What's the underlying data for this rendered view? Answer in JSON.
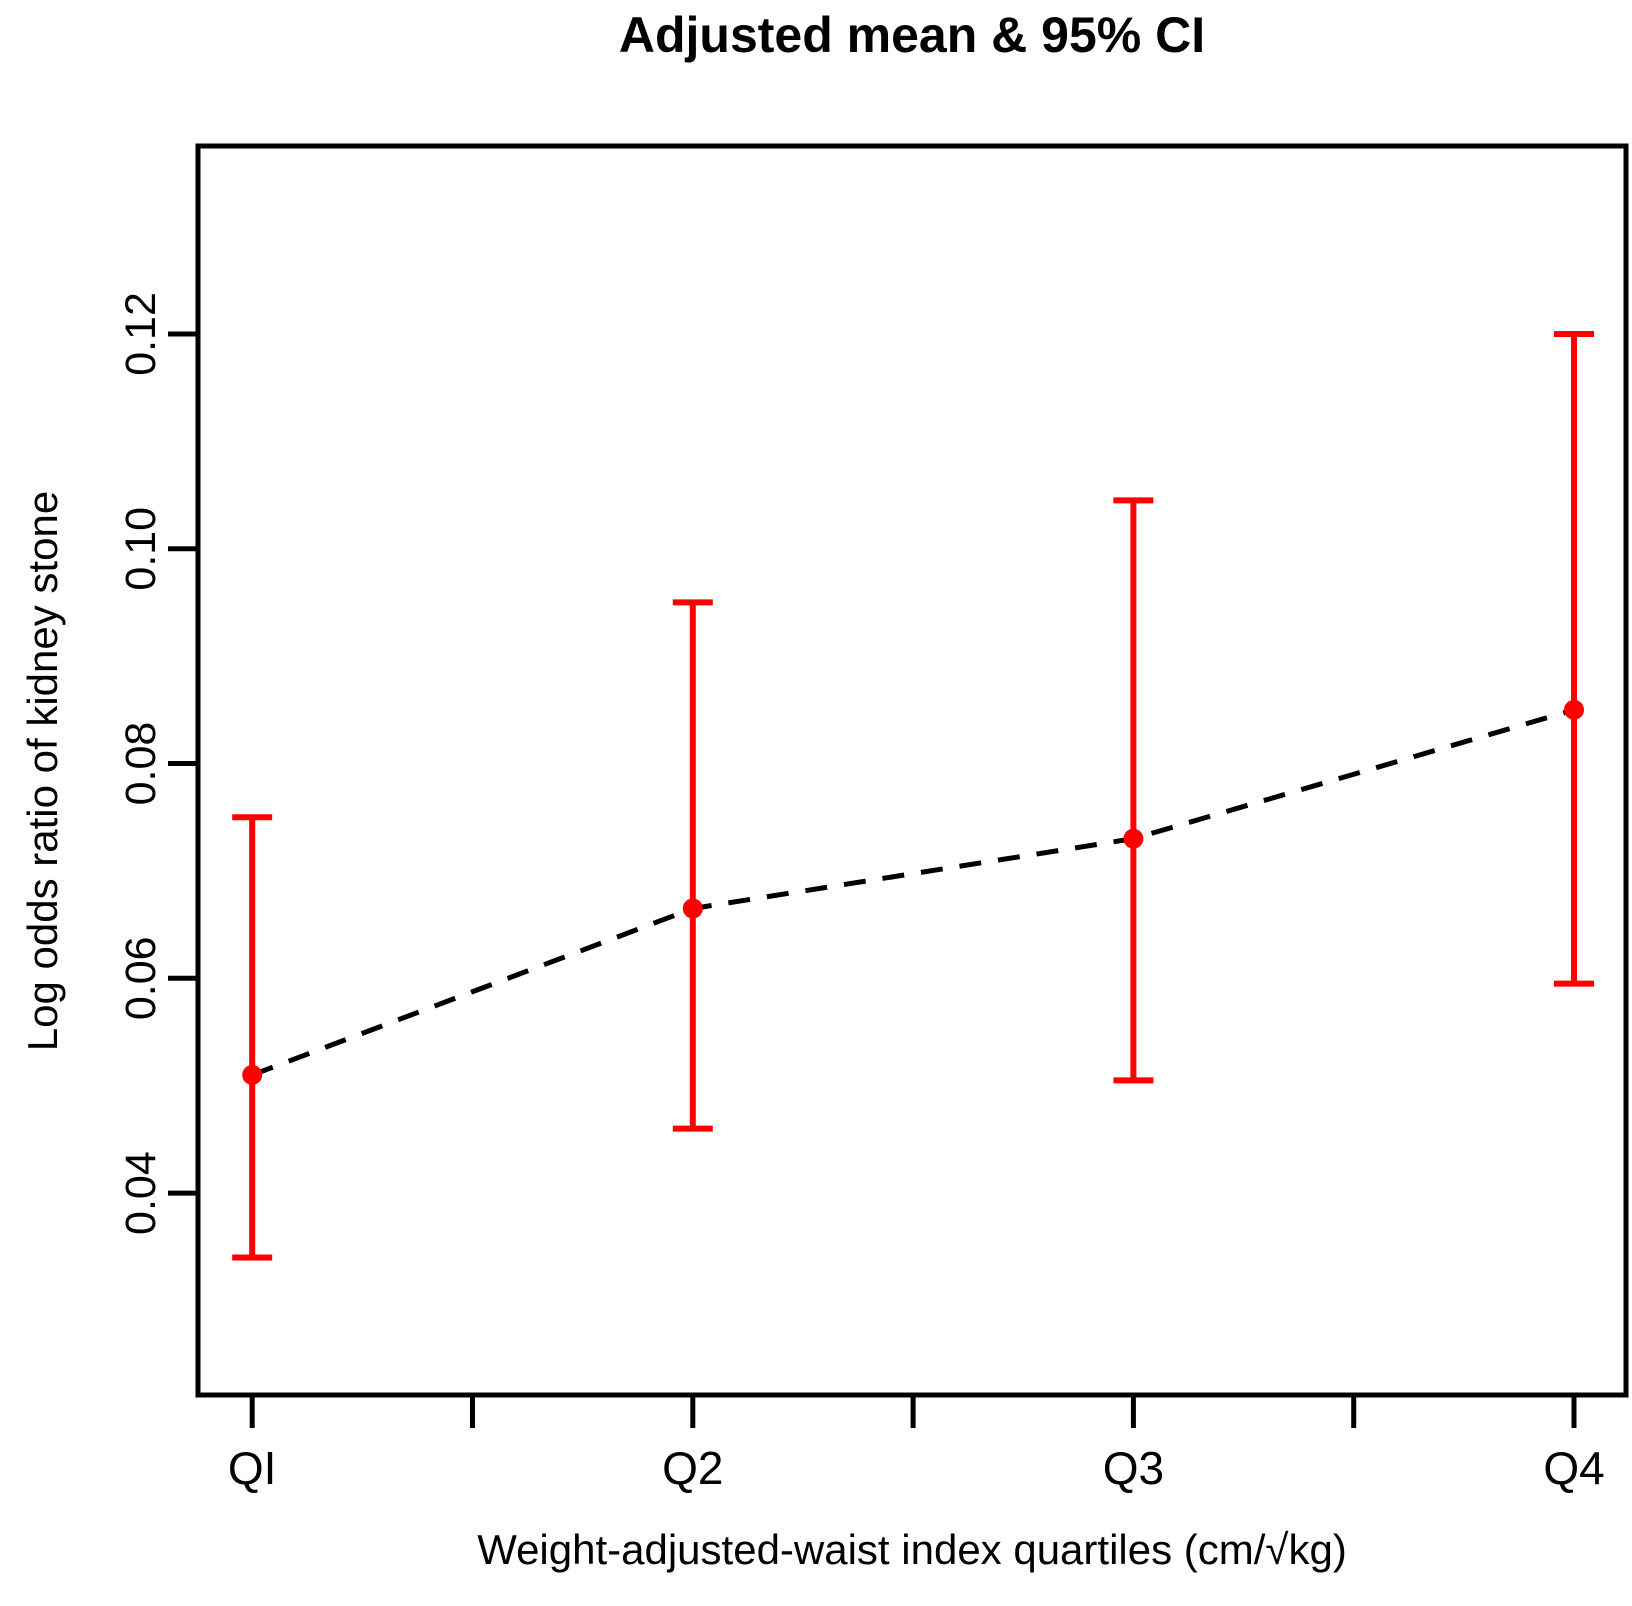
{
  "chart_data": {
    "type": "line",
    "subtype": "errorbar-means",
    "title": "Adjusted mean & 95% CI",
    "xlabel": "Weight-adjusted-waist index quartiles (cm/√kg)",
    "ylabel": "Log odds ratio of kidney stone",
    "categories": [
      "QI",
      "Q2",
      "Q3",
      "Q4"
    ],
    "x_positions": [
      1,
      2,
      3,
      4
    ],
    "x_tick_positions": [
      1,
      1.5,
      2,
      2.5,
      3,
      3.5,
      4
    ],
    "series": [
      {
        "name": "Adjusted mean",
        "values": [
          0.051,
          0.0665,
          0.073,
          0.085
        ],
        "ci_lower": [
          0.034,
          0.046,
          0.0505,
          0.0595
        ],
        "ci_upper": [
          0.075,
          0.095,
          0.1045,
          0.12
        ]
      }
    ],
    "yticks": [
      0.04,
      0.06,
      0.08,
      0.1,
      0.12
    ],
    "ytick_labels": [
      "0.04",
      "0.06",
      "0.08",
      "0.10",
      "0.12"
    ],
    "ylim": [
      0.0212,
      0.1375
    ],
    "xlim": [
      0.877,
      4.118
    ],
    "grid": false,
    "legend_position": "none",
    "line_style": "dashed",
    "colors": {
      "errorbar": "#ff0000",
      "point": "#ff0000",
      "line": "#000000",
      "axis": "#000000",
      "background": "#ffffff"
    }
  }
}
